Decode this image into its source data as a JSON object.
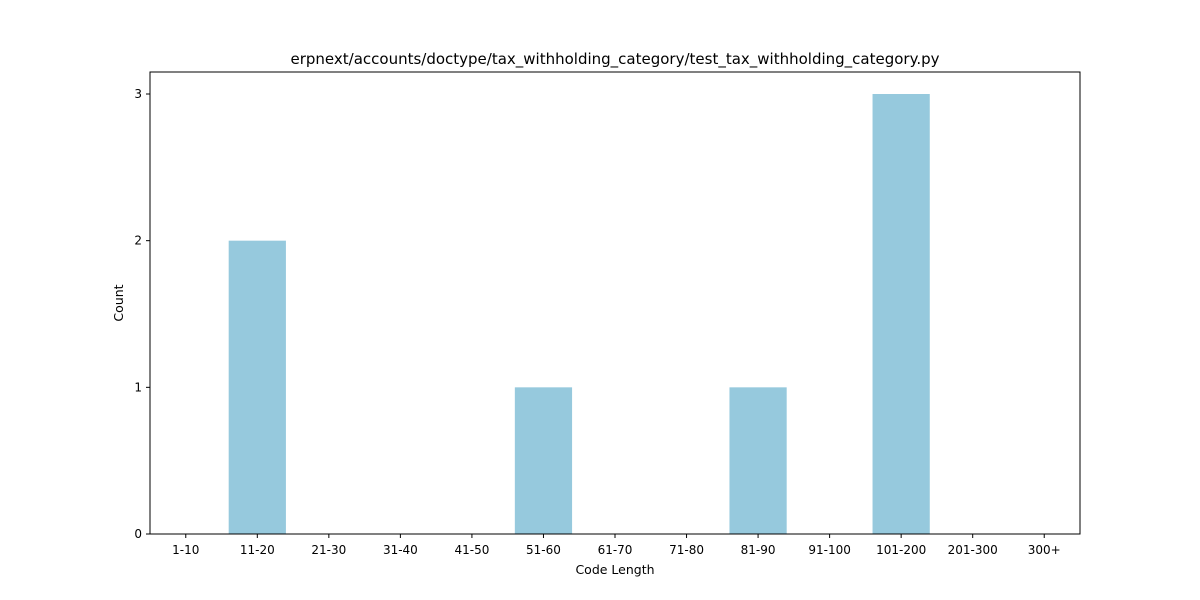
{
  "chart_data": {
    "type": "bar",
    "title": "erpnext/accounts/doctype/tax_withholding_category/test_tax_withholding_category.py",
    "xlabel": "Code Length",
    "ylabel": "Count",
    "categories": [
      "1-10",
      "11-20",
      "21-30",
      "31-40",
      "41-50",
      "51-60",
      "61-70",
      "71-80",
      "81-90",
      "91-100",
      "101-200",
      "201-300",
      "300+"
    ],
    "values": [
      0,
      2,
      0,
      0,
      0,
      1,
      0,
      0,
      1,
      0,
      3,
      0,
      0
    ],
    "ylim": [
      0,
      3.15
    ],
    "yticks": [
      0,
      1,
      2,
      3
    ],
    "grid": false,
    "bar_color": "#96c9dd"
  }
}
